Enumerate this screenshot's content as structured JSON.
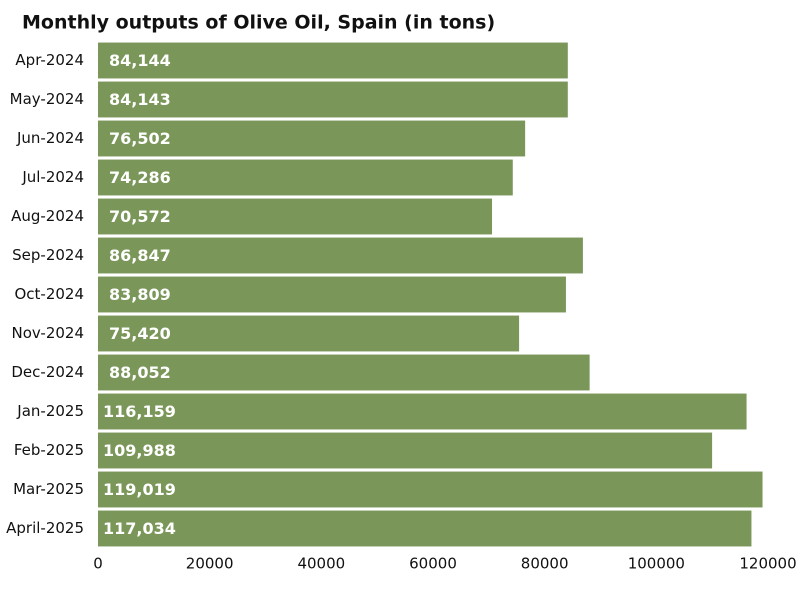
{
  "chart_data": {
    "type": "barh",
    "title": "Monthly outputs of Olive Oil, Spain (in tons)",
    "categories": [
      "Apr-2024",
      "May-2024",
      "Jun-2024",
      "Jul-2024",
      "Aug-2024",
      "Sep-2024",
      "Oct-2024",
      "Nov-2024",
      "Dec-2024",
      "Jan-2025",
      "Feb-2025",
      "Mar-2025",
      "April-2025"
    ],
    "values": [
      84144,
      84143,
      76502,
      74286,
      70572,
      86847,
      83809,
      75420,
      88052,
      116159,
      109988,
      119019,
      117034
    ],
    "value_labels": [
      "84,144",
      "84,143",
      "76,502",
      "74,286",
      "70,572",
      "86,847",
      "83,809",
      "75,420",
      "88,052",
      "116,159",
      "109,988",
      "119,019",
      "117,034"
    ],
    "color": "#7a9659",
    "xlim": [
      0,
      120000
    ],
    "xticks": [
      0,
      20000,
      40000,
      60000,
      80000,
      100000,
      120000
    ]
  }
}
